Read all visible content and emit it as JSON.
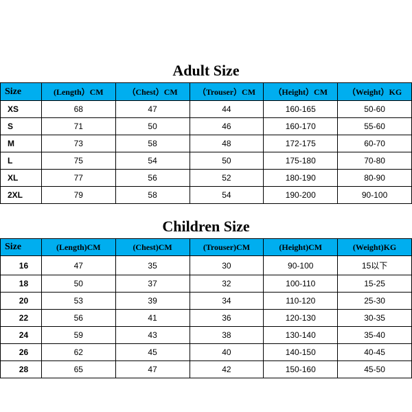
{
  "colors": {
    "header_bg": "#00aeef",
    "border": "#000000",
    "bg": "#ffffff",
    "text": "#000000"
  },
  "adult": {
    "title": "Adult Size",
    "headers": {
      "size": "Size",
      "length": "(Length）CM",
      "chest": "（Chest）CM",
      "trouser": "（Trouser）CM",
      "height": "（Height）CM",
      "weight": "（Weight）KG"
    },
    "rows": [
      {
        "size": "XS",
        "length": "68",
        "chest": "47",
        "trouser": "44",
        "height": "160-165",
        "weight": "50-60"
      },
      {
        "size": "S",
        "length": "71",
        "chest": "50",
        "trouser": "46",
        "height": "160-170",
        "weight": "55-60"
      },
      {
        "size": "M",
        "length": "73",
        "chest": "58",
        "trouser": "48",
        "height": "172-175",
        "weight": "60-70"
      },
      {
        "size": "L",
        "length": "75",
        "chest": "54",
        "trouser": "50",
        "height": "175-180",
        "weight": "70-80"
      },
      {
        "size": "XL",
        "length": "77",
        "chest": "56",
        "trouser": "52",
        "height": "180-190",
        "weight": "80-90"
      },
      {
        "size": "2XL",
        "length": "79",
        "chest": "58",
        "trouser": "54",
        "height": "190-200",
        "weight": "90-100"
      }
    ]
  },
  "children": {
    "title": "Children Size",
    "headers": {
      "size": "Size",
      "length": "(Length)CM",
      "chest": "(Chest)CM",
      "trouser": "(Trouser)CM",
      "height": "(Height)CM",
      "weight": "(Weight)KG"
    },
    "rows": [
      {
        "size": "16",
        "length": "47",
        "chest": "35",
        "trouser": "30",
        "height": "90-100",
        "weight": "15以下"
      },
      {
        "size": "18",
        "length": "50",
        "chest": "37",
        "trouser": "32",
        "height": "100-110",
        "weight": "15-25"
      },
      {
        "size": "20",
        "length": "53",
        "chest": "39",
        "trouser": "34",
        "height": "110-120",
        "weight": "25-30"
      },
      {
        "size": "22",
        "length": "56",
        "chest": "41",
        "trouser": "36",
        "height": "120-130",
        "weight": "30-35"
      },
      {
        "size": "24",
        "length": "59",
        "chest": "43",
        "trouser": "38",
        "height": "130-140",
        "weight": "35-40"
      },
      {
        "size": "26",
        "length": "62",
        "chest": "45",
        "trouser": "40",
        "height": "140-150",
        "weight": "40-45"
      },
      {
        "size": "28",
        "length": "65",
        "chest": "47",
        "trouser": "42",
        "height": "150-160",
        "weight": "45-50"
      }
    ]
  }
}
